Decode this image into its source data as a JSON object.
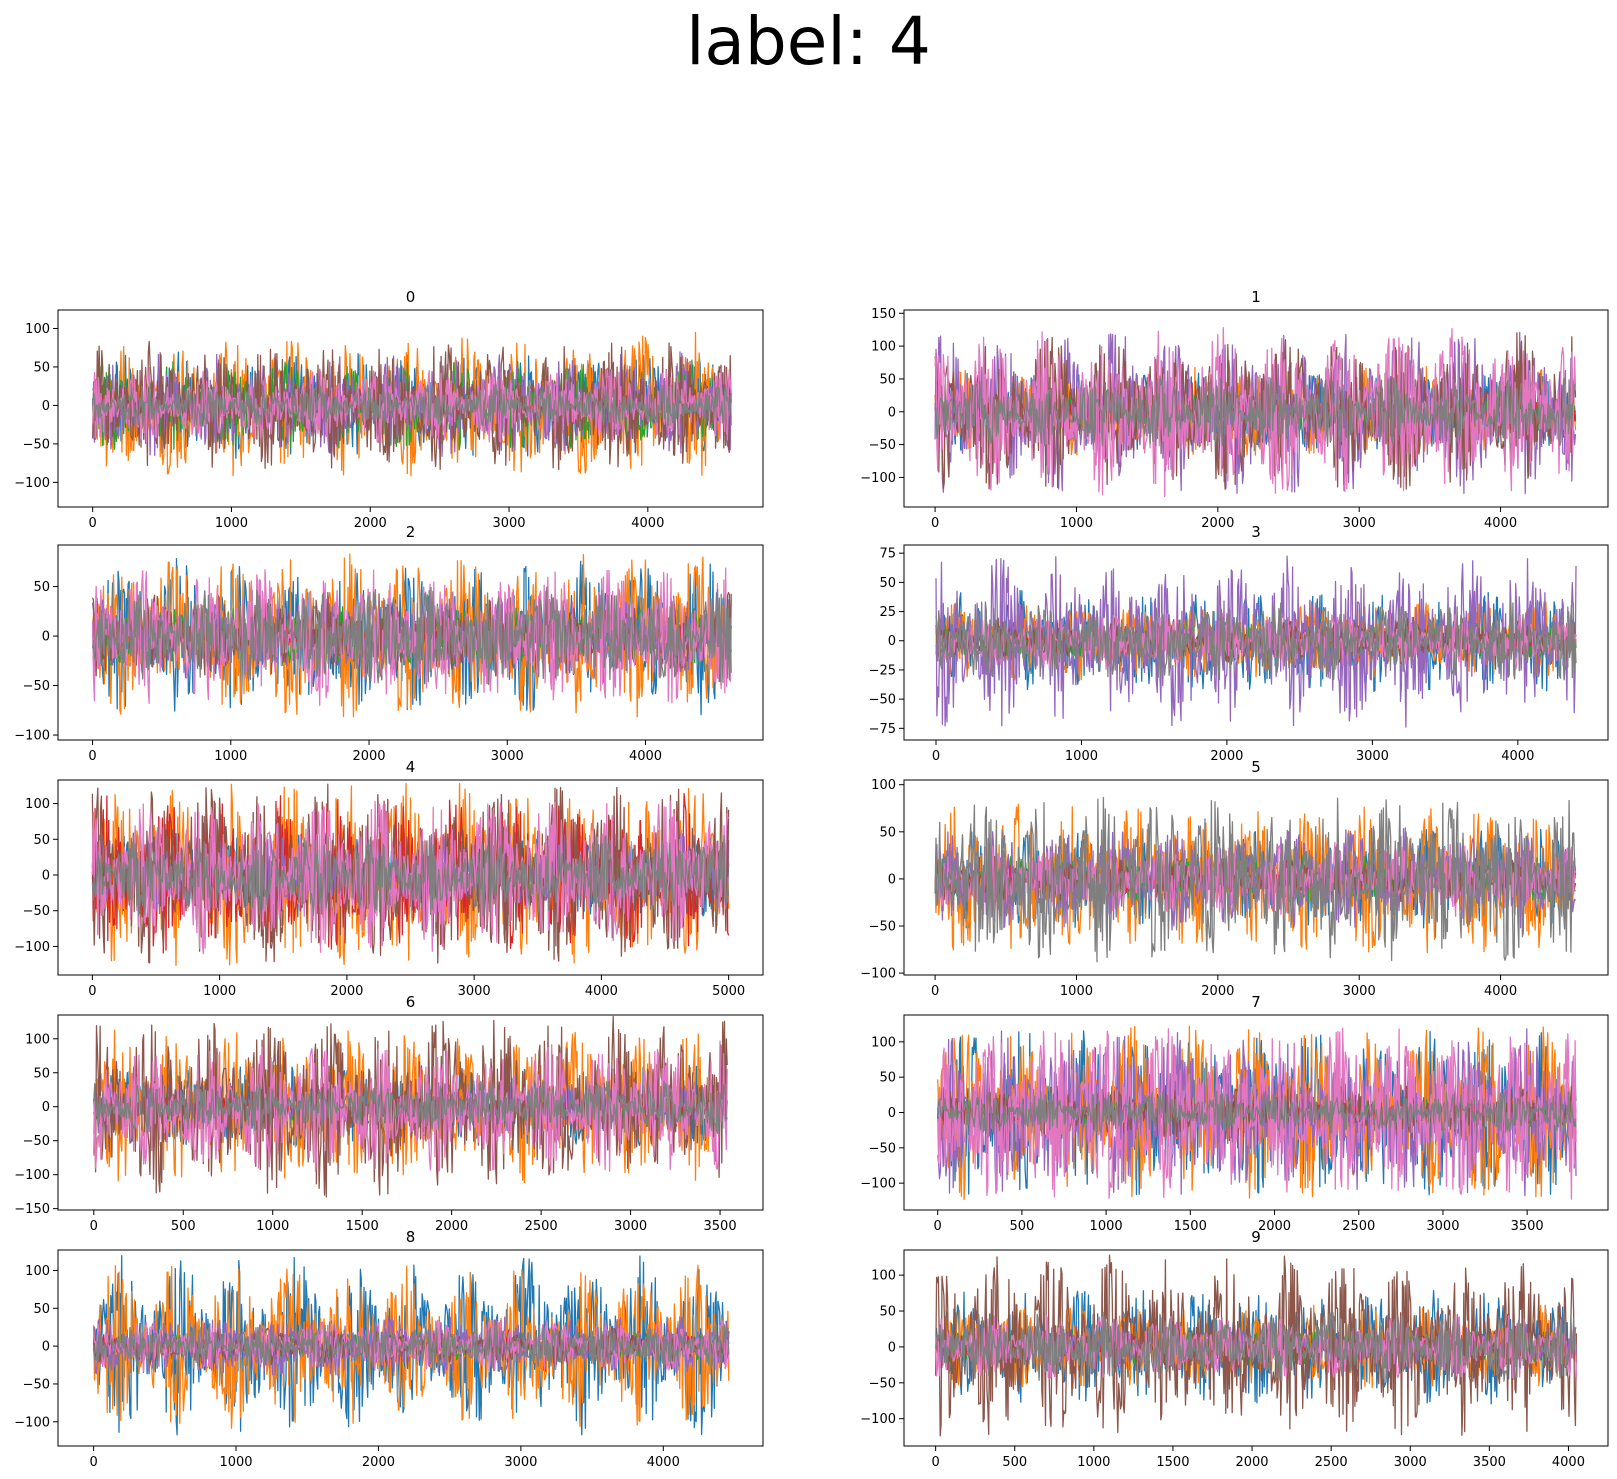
{
  "suptitle": "label: 4",
  "colors": [
    "#1f77b4",
    "#ff7f0e",
    "#2ca02c",
    "#d62728",
    "#9467bd",
    "#8c564b",
    "#e377c2",
    "#7f7f7f"
  ],
  "chart_data": [
    {
      "type": "line",
      "title": "0",
      "xlim": [
        -250,
        4830
      ],
      "ylim": [
        -132,
        124
      ],
      "xticks": [
        0,
        1000,
        2000,
        3000,
        4000
      ],
      "yticks": [
        -100,
        -50,
        0,
        50,
        100
      ],
      "n": 4600,
      "cycles": 5.5,
      "amps": [
        70,
        95,
        60,
        15,
        70,
        85,
        50,
        28
      ]
    },
    {
      "type": "line",
      "title": "1",
      "xlim": [
        -220,
        4760
      ],
      "ylim": [
        -145,
        155
      ],
      "xticks": [
        0,
        1000,
        2000,
        3000,
        4000
      ],
      "yticks": [
        -100,
        -50,
        0,
        50,
        100,
        150
      ],
      "n": 4530,
      "cycles": 5.5,
      "amps": [
        60,
        70,
        30,
        20,
        130,
        125,
        130,
        55
      ]
    },
    {
      "type": "line",
      "title": "2",
      "xlim": [
        -250,
        4850
      ],
      "ylim": [
        -105,
        92
      ],
      "xticks": [
        0,
        1000,
        2000,
        3000,
        4000
      ],
      "yticks": [
        -100,
        -50,
        0,
        50
      ],
      "n": 4620,
      "cycles": 5.5,
      "amps": [
        80,
        85,
        30,
        15,
        40,
        45,
        70,
        50
      ]
    },
    {
      "type": "line",
      "title": "3",
      "xlim": [
        -220,
        4620
      ],
      "ylim": [
        -85,
        82
      ],
      "xticks": [
        0,
        1000,
        2000,
        3000,
        4000
      ],
      "yticks": [
        -75,
        -50,
        -25,
        0,
        25,
        50,
        75
      ],
      "n": 4400,
      "cycles": 5.5,
      "amps": [
        45,
        35,
        15,
        10,
        75,
        20,
        25,
        35
      ]
    },
    {
      "type": "line",
      "title": "4",
      "xlim": [
        -270,
        5270
      ],
      "ylim": [
        -140,
        133
      ],
      "xticks": [
        0,
        1000,
        2000,
        3000,
        4000,
        5000
      ],
      "yticks": [
        -100,
        -50,
        0,
        50,
        100
      ],
      "n": 5000,
      "cycles": 5.5,
      "amps": [
        60,
        130,
        30,
        115,
        60,
        130,
        110,
        60
      ]
    },
    {
      "type": "line",
      "title": "5",
      "xlim": [
        -220,
        4760
      ],
      "ylim": [
        -102,
        105
      ],
      "xticks": [
        0,
        1000,
        2000,
        3000,
        4000
      ],
      "yticks": [
        -100,
        -50,
        0,
        50,
        100
      ],
      "n": 4530,
      "cycles": 5.5,
      "amps": [
        55,
        80,
        25,
        15,
        55,
        25,
        40,
        90
      ]
    },
    {
      "type": "line",
      "title": "6",
      "xlim": [
        -200,
        3740
      ],
      "ylim": [
        -152,
        135
      ],
      "xticks": [
        0,
        500,
        1000,
        1500,
        2000,
        2500,
        3000,
        3500
      ],
      "yticks": [
        -150,
        -100,
        -50,
        0,
        50,
        100
      ],
      "n": 3540,
      "cycles": 5.5,
      "amps": [
        60,
        115,
        25,
        15,
        40,
        135,
        100,
        40
      ]
    },
    {
      "type": "line",
      "title": "7",
      "xlim": [
        -200,
        3980
      ],
      "ylim": [
        -138,
        138
      ],
      "xticks": [
        0,
        500,
        1000,
        1500,
        2000,
        2500,
        3000,
        3500
      ],
      "yticks": [
        -100,
        -50,
        0,
        50,
        100
      ],
      "n": 3790,
      "cycles": 5.5,
      "amps": [
        120,
        125,
        25,
        20,
        120,
        40,
        125,
        30
      ]
    },
    {
      "type": "line",
      "title": "8",
      "xlim": [
        -250,
        4700
      ],
      "ylim": [
        -132,
        127
      ],
      "xticks": [
        0,
        1000,
        2000,
        3000,
        4000
      ],
      "yticks": [
        -100,
        -50,
        0,
        50,
        100
      ],
      "n": 4460,
      "cycles": 5.5,
      "amps": [
        120,
        110,
        20,
        15,
        40,
        25,
        35,
        30
      ]
    },
    {
      "type": "line",
      "title": "9",
      "xlim": [
        -200,
        4250
      ],
      "ylim": [
        -138,
        135
      ],
      "xticks": [
        0,
        500,
        1000,
        1500,
        2000,
        2500,
        3000,
        3500,
        4000
      ],
      "yticks": [
        -100,
        -50,
        0,
        50,
        100
      ],
      "n": 4050,
      "cycles": 5.5,
      "amps": [
        80,
        60,
        25,
        20,
        30,
        130,
        45,
        50
      ]
    }
  ]
}
